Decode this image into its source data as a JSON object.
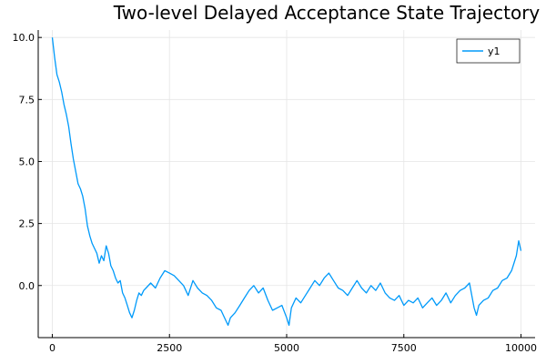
{
  "chart_data": {
    "type": "line",
    "title": "Two-level Delayed Acceptance State Trajectory",
    "xlabel": "",
    "ylabel": "",
    "xlim": [
      -300,
      10300
    ],
    "ylim": [
      -2.1,
      10.3
    ],
    "xticks": [
      0,
      2500,
      5000,
      7500,
      10000
    ],
    "xtick_labels": [
      "0",
      "2500",
      "5000",
      "7500",
      "10000"
    ],
    "yticks": [
      0,
      2.5,
      5,
      7.5,
      10
    ],
    "ytick_labels": [
      "0.0",
      "2.5",
      "5.0",
      "7.5",
      "10.0"
    ],
    "grid": true,
    "legend": "top-right",
    "colors": {
      "series": "#009AFA",
      "grid": "#E5E5E5",
      "axis": "#000000"
    },
    "series": [
      {
        "name": "y1",
        "x": [
          0,
          50,
          100,
          150,
          200,
          250,
          300,
          350,
          400,
          450,
          500,
          550,
          600,
          650,
          700,
          750,
          800,
          850,
          900,
          950,
          1000,
          1050,
          1100,
          1150,
          1200,
          1250,
          1300,
          1350,
          1400,
          1450,
          1500,
          1550,
          1600,
          1650,
          1700,
          1750,
          1800,
          1850,
          1900,
          1950,
          2000,
          2100,
          2200,
          2300,
          2400,
          2500,
          2600,
          2700,
          2800,
          2900,
          3000,
          3100,
          3200,
          3300,
          3400,
          3500,
          3600,
          3700,
          3750,
          3800,
          3900,
          4000,
          4100,
          4200,
          4300,
          4400,
          4500,
          4600,
          4700,
          4800,
          4900,
          5000,
          5050,
          5100,
          5200,
          5300,
          5400,
          5500,
          5600,
          5700,
          5800,
          5900,
          6000,
          6100,
          6200,
          6300,
          6400,
          6500,
          6600,
          6700,
          6800,
          6900,
          7000,
          7100,
          7200,
          7300,
          7400,
          7500,
          7600,
          7700,
          7800,
          7900,
          8000,
          8100,
          8200,
          8300,
          8400,
          8500,
          8600,
          8700,
          8800,
          8900,
          9000,
          9050,
          9100,
          9200,
          9300,
          9400,
          9500,
          9600,
          9700,
          9800,
          9900,
          9950,
          10000
        ],
        "y": [
          10.0,
          9.2,
          8.5,
          8.2,
          7.8,
          7.3,
          6.9,
          6.4,
          5.7,
          5.1,
          4.6,
          4.1,
          3.9,
          3.6,
          3.1,
          2.4,
          2.0,
          1.7,
          1.5,
          1.3,
          0.9,
          1.2,
          1.0,
          1.6,
          1.3,
          0.8,
          0.6,
          0.3,
          0.1,
          0.2,
          -0.3,
          -0.5,
          -0.8,
          -1.1,
          -1.3,
          -1.0,
          -0.6,
          -0.3,
          -0.4,
          -0.2,
          -0.1,
          0.1,
          -0.1,
          0.3,
          0.6,
          0.5,
          0.4,
          0.2,
          0.0,
          -0.4,
          0.2,
          -0.1,
          -0.3,
          -0.4,
          -0.6,
          -0.9,
          -1.0,
          -1.4,
          -1.6,
          -1.3,
          -1.1,
          -0.8,
          -0.5,
          -0.2,
          0.0,
          -0.3,
          -0.1,
          -0.6,
          -1.0,
          -0.9,
          -0.8,
          -1.3,
          -1.6,
          -0.9,
          -0.5,
          -0.7,
          -0.4,
          -0.1,
          0.2,
          0.0,
          0.3,
          0.5,
          0.2,
          -0.1,
          -0.2,
          -0.4,
          -0.1,
          0.2,
          -0.1,
          -0.3,
          0.0,
          -0.2,
          0.1,
          -0.3,
          -0.5,
          -0.6,
          -0.4,
          -0.8,
          -0.6,
          -0.7,
          -0.5,
          -0.9,
          -0.7,
          -0.5,
          -0.8,
          -0.6,
          -0.3,
          -0.7,
          -0.4,
          -0.2,
          -0.1,
          0.1,
          -0.9,
          -1.2,
          -0.8,
          -0.6,
          -0.5,
          -0.2,
          -0.1,
          0.2,
          0.3,
          0.6,
          1.2,
          1.8,
          1.4
        ]
      }
    ]
  }
}
